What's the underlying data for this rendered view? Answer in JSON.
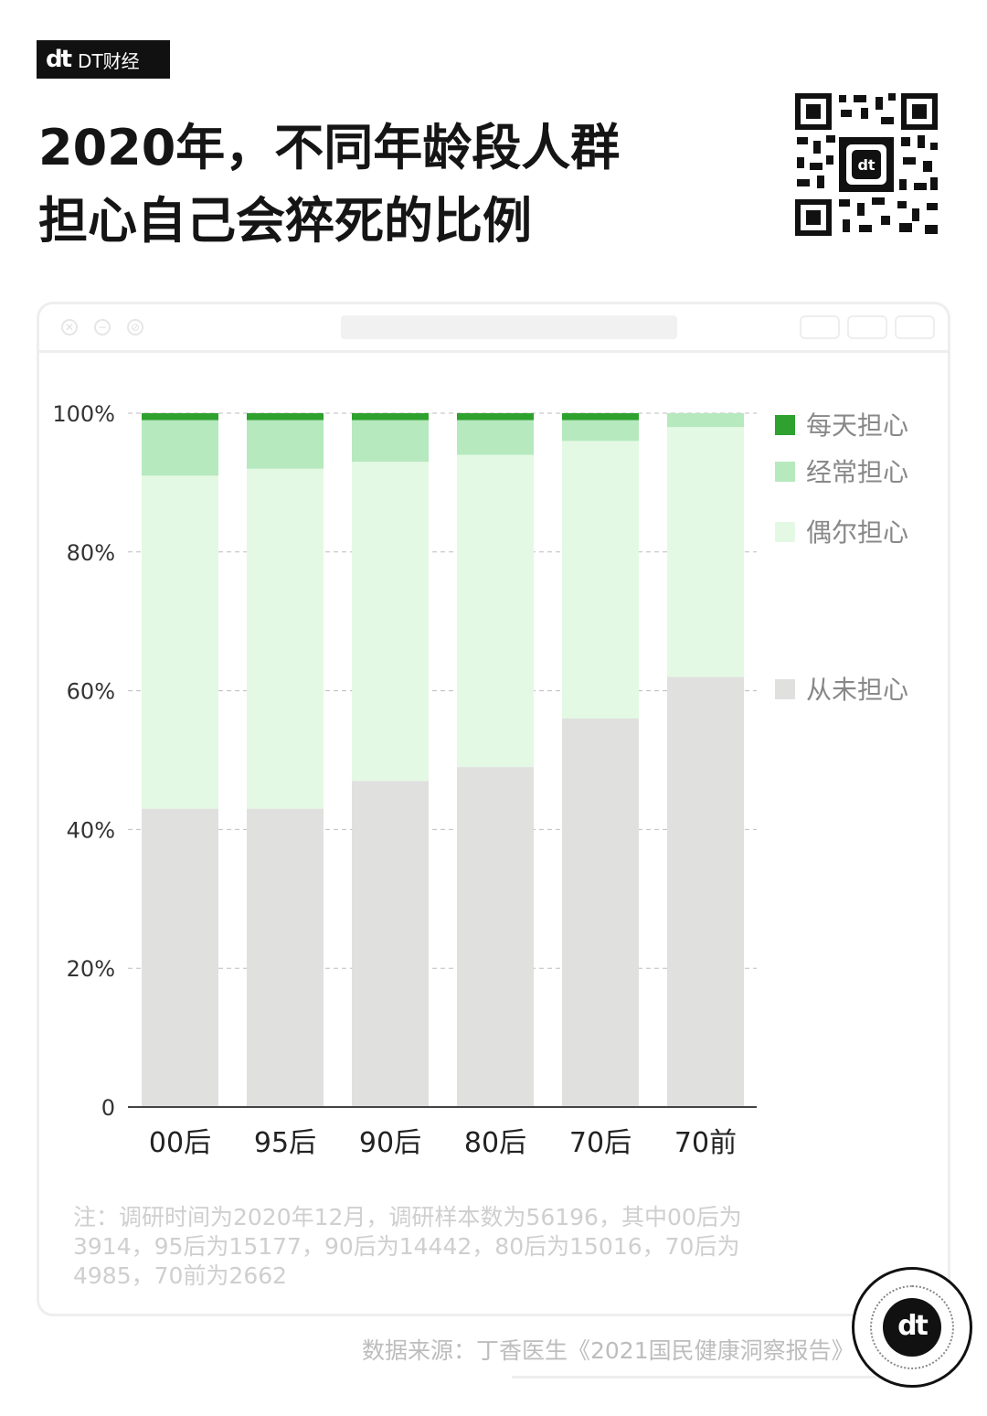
{
  "brand": {
    "logo_mark": "dt",
    "logo_text": "DT财经"
  },
  "title_lines": [
    "2020年，不同年龄段人群",
    "担心自己会猝死的比例"
  ],
  "chart_data": {
    "type": "bar",
    "stacked": true,
    "title": "2020年，不同年龄段人群担心自己会猝死的比例",
    "categories": [
      "00后",
      "95后",
      "90后",
      "80后",
      "70后",
      "70前"
    ],
    "series": [
      {
        "name": "从未担心",
        "color": "#e0e0df",
        "values": [
          43,
          43,
          47,
          49,
          56,
          62
        ]
      },
      {
        "name": "偶尔担心",
        "color": "#e3f9e3",
        "values": [
          48,
          49,
          46,
          45,
          40,
          36
        ]
      },
      {
        "name": "经常担心",
        "color": "#b6e9be",
        "values": [
          8,
          7,
          6,
          5,
          3,
          2
        ]
      },
      {
        "name": "每天担心",
        "color": "#2ea12e",
        "values": [
          1,
          1,
          1,
          1,
          1,
          0
        ]
      }
    ],
    "yticks": [
      "0",
      "20%",
      "40%",
      "60%",
      "80%",
      "100%"
    ],
    "ylim": [
      0,
      100
    ],
    "grid": "dashed horizontal",
    "legend": "right"
  },
  "note": "注：调研时间为2020年12月，调研样本数为56196，其中00后为3914，95后为15177，90后为14442，80后为15016，70后为4985，70前为2662",
  "source": "数据来源：丁香医生《2021国民健康洞察报告》",
  "badge": "dt"
}
